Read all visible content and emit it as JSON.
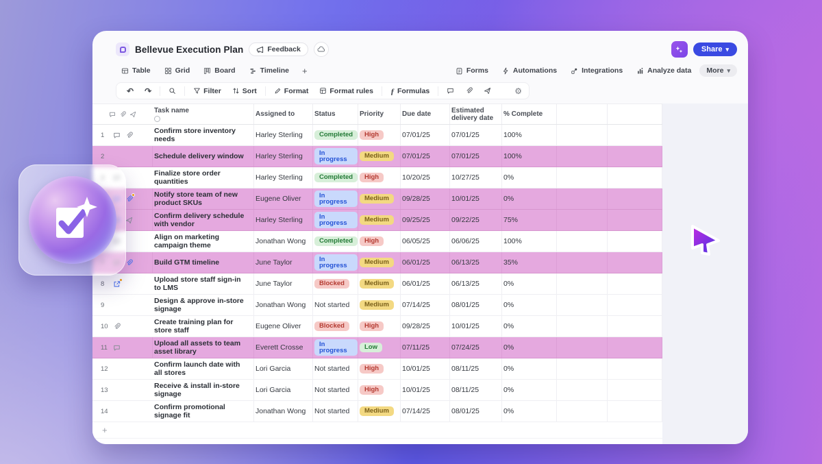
{
  "window": {
    "title": "Bellevue Execution Plan",
    "feedback_label": "Feedback",
    "ai_button": "sparkle",
    "share_label": "Share",
    "tabs": [
      "Table",
      "Grid",
      "Board",
      "Timeline"
    ],
    "tab_add": "+",
    "view_actions": [
      "Forms",
      "Automations",
      "Integrations",
      "Analyze data",
      "More"
    ],
    "toolbar": {
      "undo": "↶",
      "redo": "↷",
      "filter_label": "Filter",
      "sort_label": "Sort",
      "format_label": "Format",
      "format_rules_label": "Format rules",
      "formulas_label": "Formulas",
      "gear": "⚙"
    }
  },
  "colors": {
    "row_highlight": "#e5a9df",
    "share_blue": "#3a4ae2",
    "ai_purple": "#8a4de9",
    "accent_blue_icon": "#4c74f0",
    "notification_dot": "#f59e0b"
  },
  "status_styles": {
    "Completed": {
      "bg": "#d7efd9",
      "fg": "#237a36"
    },
    "In progress": {
      "bg": "#c9d9fc",
      "fg": "#2453d6"
    },
    "Blocked": {
      "bg": "#f6c9c6",
      "fg": "#b43a31"
    },
    "Not started": {
      "bg": "",
      "fg": "#3a3f47"
    }
  },
  "priority_styles": {
    "High": {
      "bg": "#f6c9c6",
      "fg": "#b43a31"
    },
    "Medium": {
      "bg": "#f3d982",
      "fg": "#7c611b"
    },
    "Low": {
      "bg": "#d7efd9",
      "fg": "#237a36"
    }
  },
  "table": {
    "columns": [
      "Task name",
      "Assigned to",
      "Status",
      "Priority",
      "Due date",
      "Estimated delivery date",
      "% Complete"
    ],
    "add_row_label": "+",
    "rows": [
      {
        "num": "1",
        "icons": [
          {
            "name": "comment",
            "tone": "gray"
          },
          {
            "name": "paperclip",
            "tone": "gray"
          }
        ],
        "task": "Confirm store inventory needs",
        "assigned": "Harley Sterling",
        "status": "Completed",
        "priority": "High",
        "due": "07/01/25",
        "est": "07/01/25",
        "complete": "100%",
        "highlighted": false
      },
      {
        "num": "2",
        "icons": [],
        "task": "Schedule delivery window",
        "assigned": "Harley Sterling",
        "status": "In progress",
        "priority": "Medium",
        "due": "07/01/25",
        "est": "07/01/25",
        "complete": "100%",
        "highlighted": true
      },
      {
        "num": "3",
        "icons": [
          {
            "name": "comment",
            "tone": "gray"
          }
        ],
        "task": "Finalize store order quantities",
        "assigned": "Harley Sterling",
        "status": "Completed",
        "priority": "High",
        "due": "10/20/25",
        "est": "10/27/25",
        "complete": "0%",
        "highlighted": false
      },
      {
        "num": "4",
        "icons": [
          {
            "name": "comment",
            "tone": "blue"
          },
          {
            "name": "paperclip",
            "tone": "blue",
            "dot": true
          }
        ],
        "task": "Notify store team of new product SKUs",
        "assigned": "Eugene Oliver",
        "status": "In progress",
        "priority": "Medium",
        "due": "09/28/25",
        "est": "10/01/25",
        "complete": "0%",
        "highlighted": true
      },
      {
        "num": "5",
        "icons": [
          {
            "name": "comment",
            "tone": "blue"
          },
          {
            "name": "send",
            "tone": "gray"
          }
        ],
        "task": "Confirm delivery schedule with vendor",
        "assigned": "Harley Sterling",
        "status": "In progress",
        "priority": "Medium",
        "due": "09/25/25",
        "est": "09/22/25",
        "complete": "75%",
        "highlighted": true
      },
      {
        "num": "6",
        "icons": [
          {
            "name": "comment",
            "tone": "gray"
          }
        ],
        "task": "Align on marketing campaign theme",
        "assigned": "Jonathan Wong",
        "status": "Completed",
        "priority": "High",
        "due": "06/05/25",
        "est": "06/06/25",
        "complete": "100%",
        "highlighted": false
      },
      {
        "num": "7",
        "icons": [
          {
            "name": "comment",
            "tone": "gray"
          },
          {
            "name": "paperclip",
            "tone": "blue"
          }
        ],
        "task": "Build GTM timeline",
        "assigned": "June Taylor",
        "status": "In progress",
        "priority": "Medium",
        "due": "06/01/25",
        "est": "06/13/25",
        "complete": "35%",
        "highlighted": true
      },
      {
        "num": "8",
        "icons": [
          {
            "name": "open",
            "tone": "blue",
            "dot": true
          }
        ],
        "task": "Upload store staff sign-in to LMS",
        "assigned": "June Taylor",
        "status": "Blocked",
        "priority": "Medium",
        "due": "06/01/25",
        "est": "06/13/25",
        "complete": "0%",
        "highlighted": false
      },
      {
        "num": "9",
        "icons": [],
        "task": "Design & approve in-store signage",
        "assigned": "Jonathan Wong",
        "status": "Not started",
        "priority": "Medium",
        "due": "07/14/25",
        "est": "08/01/25",
        "complete": "0%",
        "highlighted": false
      },
      {
        "num": "10",
        "icons": [
          {
            "name": "paperclip",
            "tone": "gray"
          }
        ],
        "task": "Create training plan for store staff",
        "assigned": "Eugene Oliver",
        "status": "Blocked",
        "priority": "High",
        "due": "09/28/25",
        "est": "10/01/25",
        "complete": "0%",
        "highlighted": false
      },
      {
        "num": "11",
        "icons": [
          {
            "name": "comment",
            "tone": "gray"
          }
        ],
        "task": "Upload all assets to team asset library",
        "assigned": "Everett Crosse",
        "status": "In progress",
        "priority": "Low",
        "due": "07/11/25",
        "est": "07/24/25",
        "complete": "0%",
        "highlighted": true
      },
      {
        "num": "12",
        "icons": [],
        "task": "Confirm launch date with all stores",
        "assigned": "Lori Garcia",
        "status": "Not started",
        "priority": "High",
        "due": "10/01/25",
        "est": "08/11/25",
        "complete": "0%",
        "highlighted": false
      },
      {
        "num": "13",
        "icons": [],
        "task": "Receive & install in-store signage",
        "assigned": "Lori Garcia",
        "status": "Not started",
        "priority": "High",
        "due": "10/01/25",
        "est": "08/11/25",
        "complete": "0%",
        "highlighted": false
      },
      {
        "num": "14",
        "icons": [],
        "task": "Confirm promotional signage fit",
        "assigned": "Jonathan Wong",
        "status": "Not started",
        "priority": "Medium",
        "due": "07/14/25",
        "est": "08/01/25",
        "complete": "0%",
        "highlighted": false
      }
    ]
  }
}
